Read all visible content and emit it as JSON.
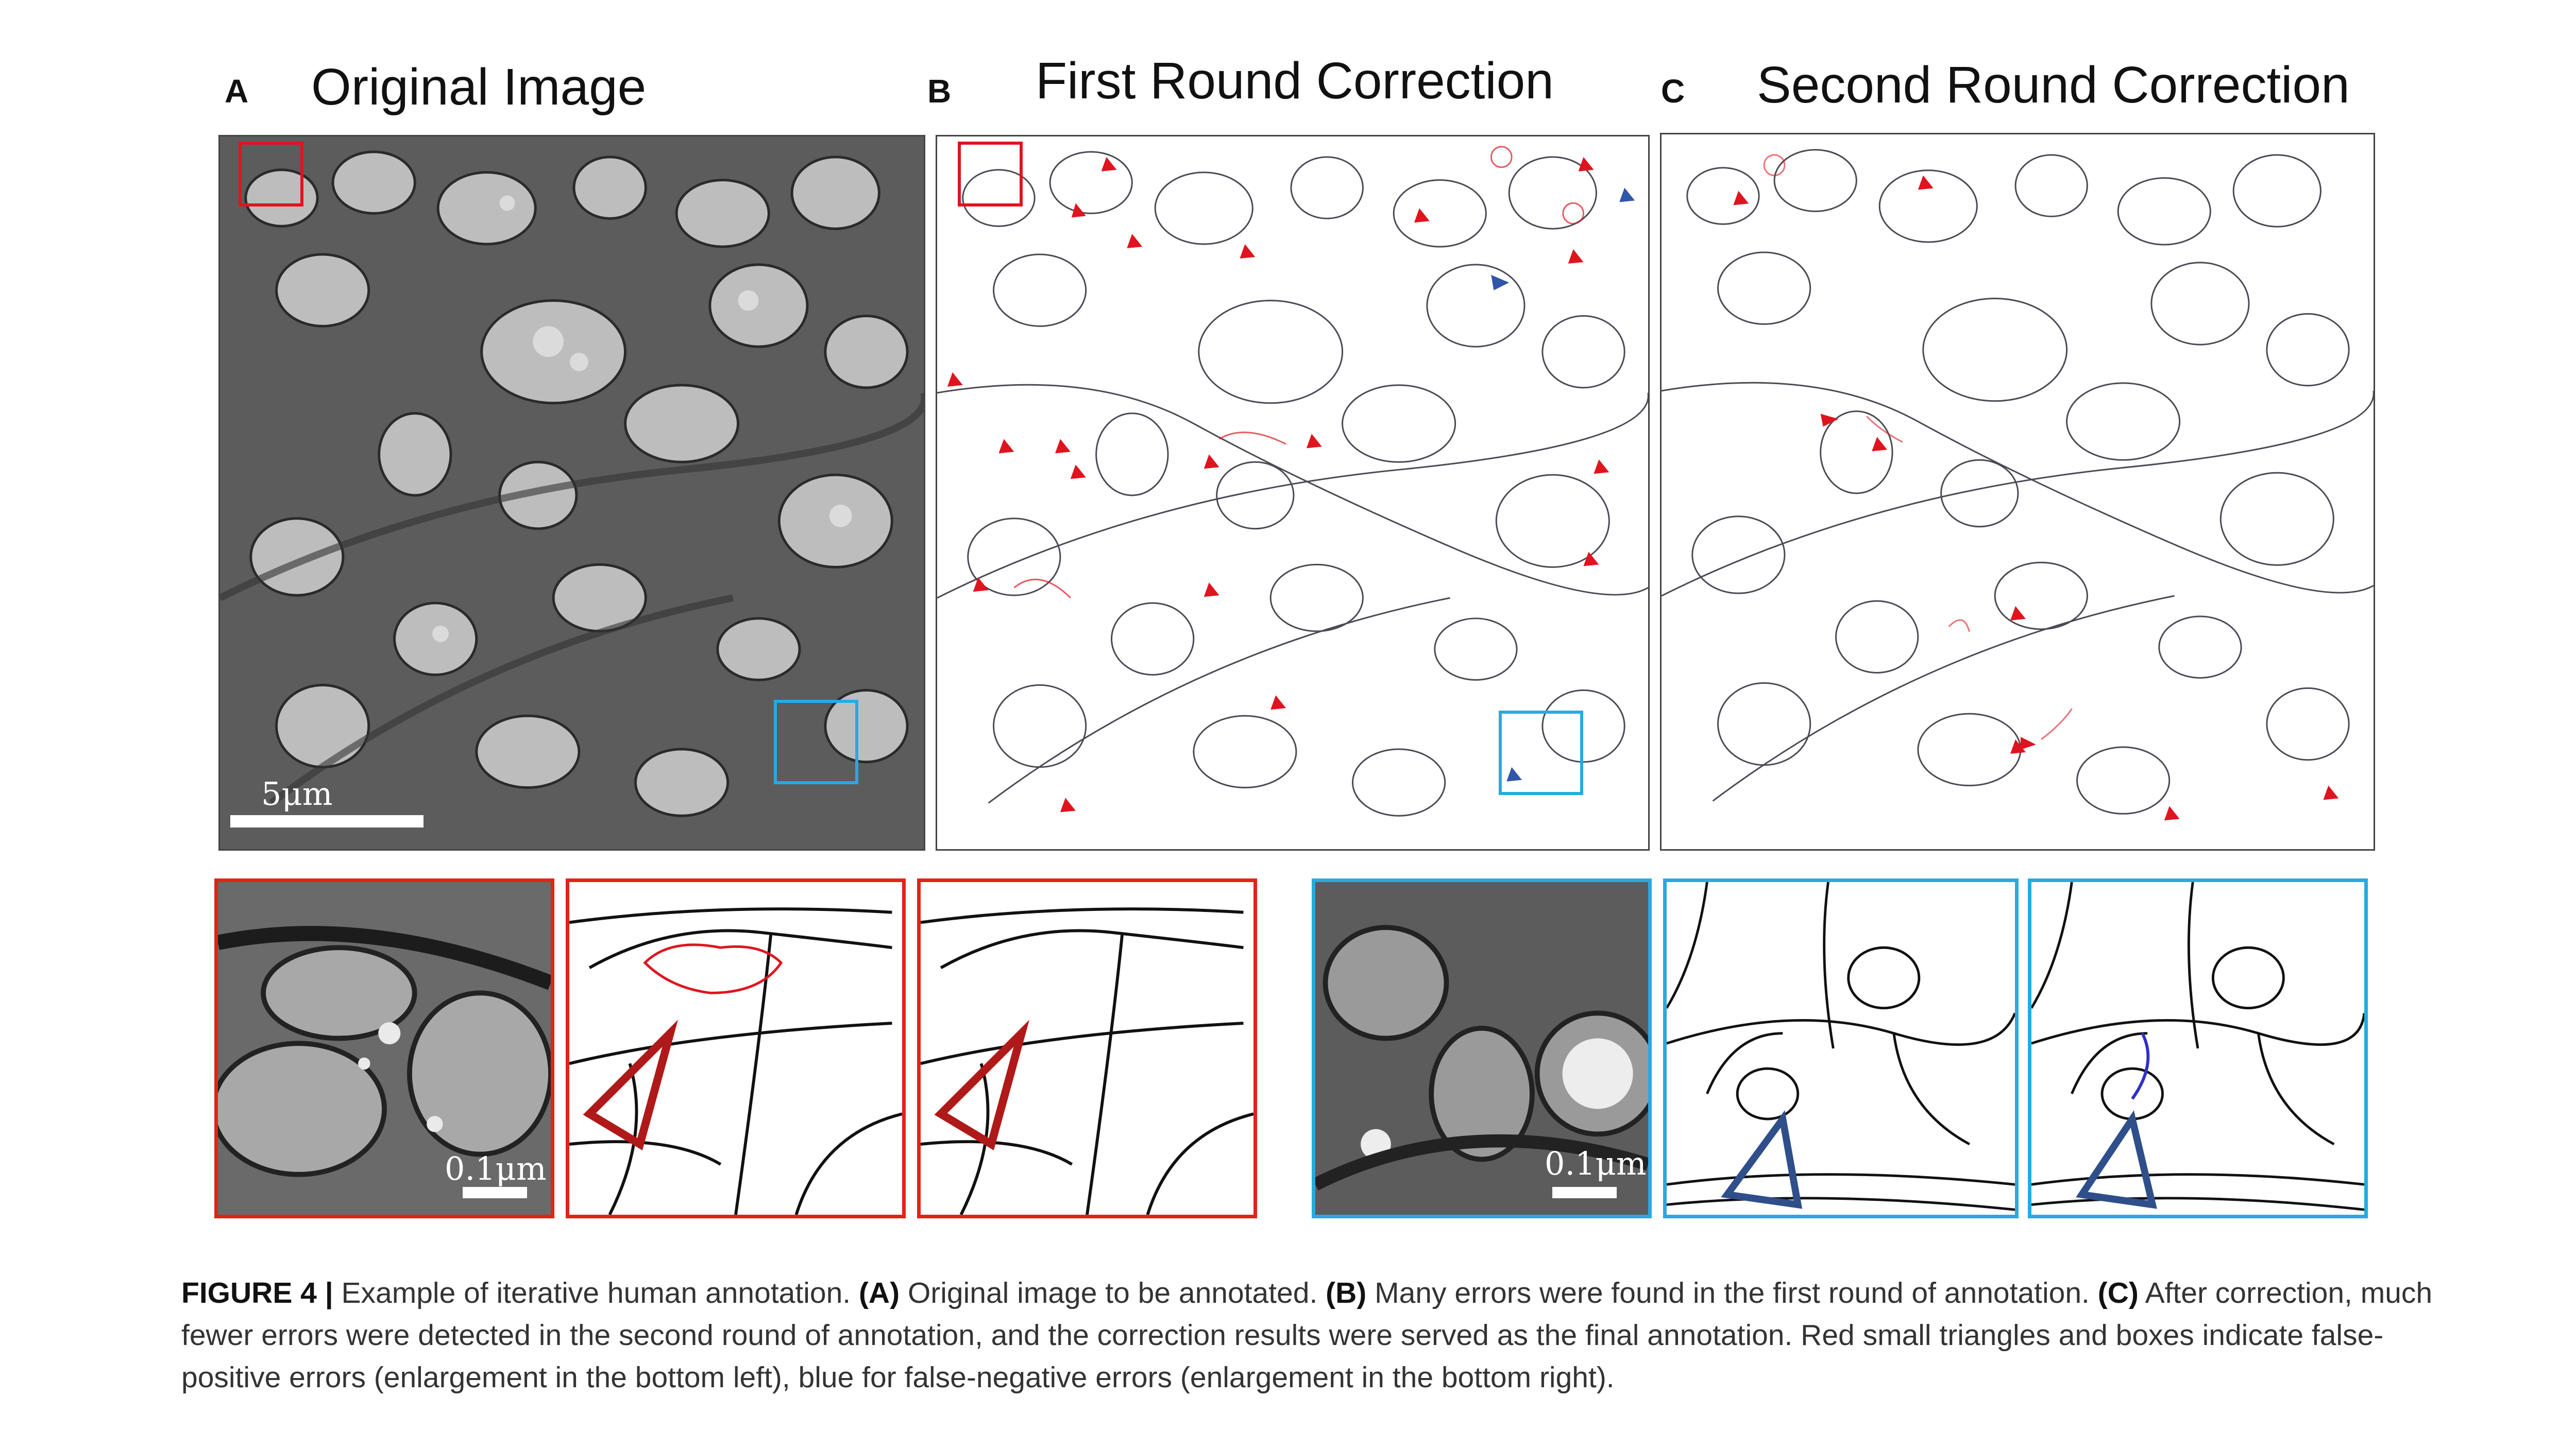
{
  "panels": {
    "a": {
      "letter": "A",
      "title": "Original Image",
      "scale_label": "5μm"
    },
    "b": {
      "letter": "B",
      "title": "First Round Correction"
    },
    "c": {
      "letter": "C",
      "title": "Second Round Correction"
    }
  },
  "insets": {
    "red_scale_label": "0.1μm",
    "blue_scale_label": "0.1μm"
  },
  "caption": {
    "figure_label": "FIGURE 4 |",
    "intro": "Example of iterative human annotation.",
    "a_label": "(A)",
    "a_text": "Original image to be annotated.",
    "b_label": "(B)",
    "b_text": "Many errors were found in the first round of annotation.",
    "c_label": "(C)",
    "c_text": "After correction, much fewer errors were detected in the second round of annotation, and the correction results were served as the final annotation. Red small triangles and boxes indicate false-positive errors (enlargement in the bottom left), blue for false-negative errors (enlargement in the bottom right)."
  },
  "colors": {
    "false_positive": "#e0141e",
    "false_negative": "#2f56a8",
    "inset_red_border": "#e2231a",
    "inset_blue_border": "#27aae1",
    "em_background": "#5a5a5a"
  }
}
